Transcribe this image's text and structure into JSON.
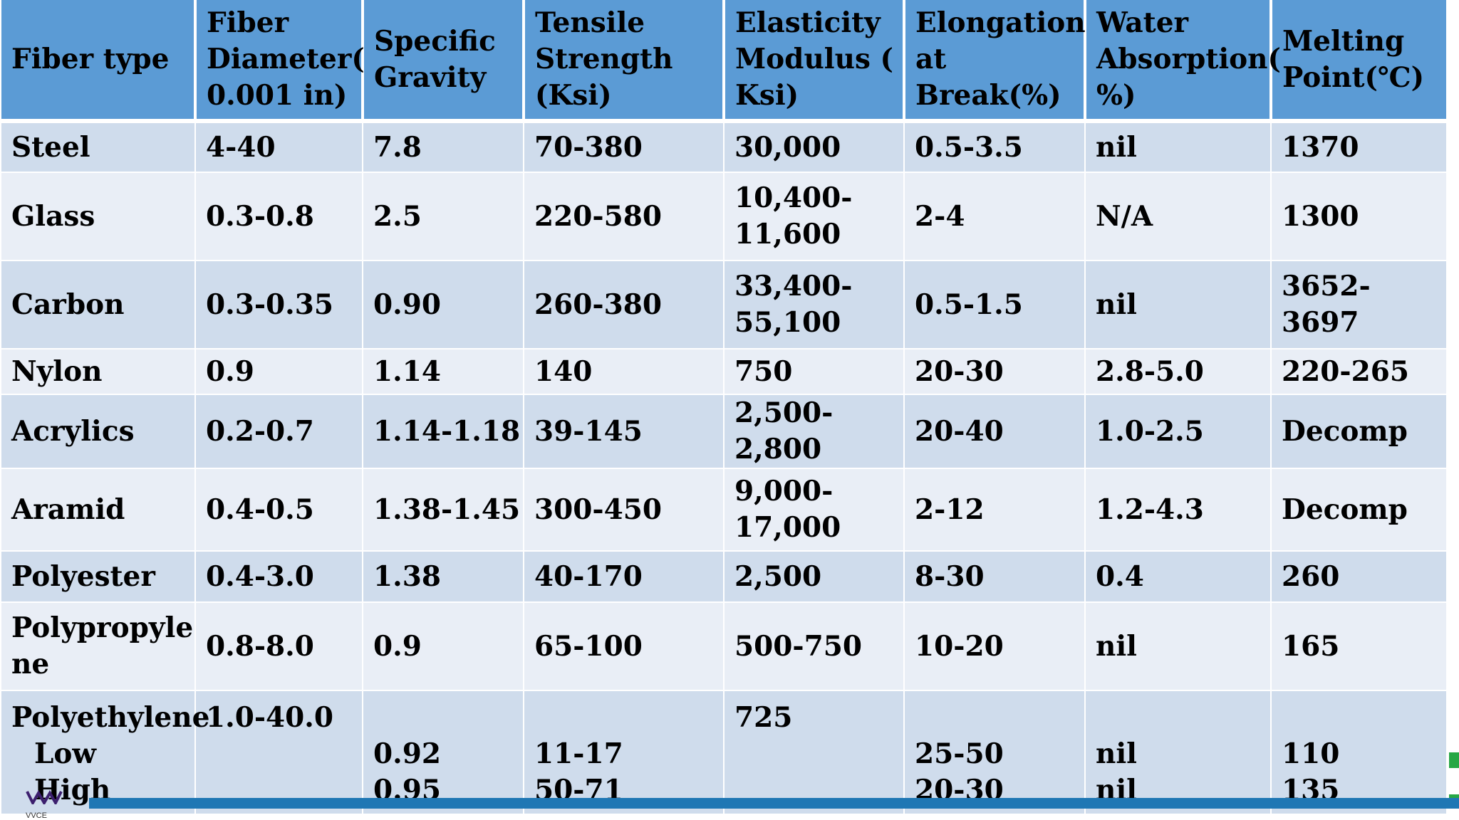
{
  "table": {
    "headers": [
      "Fiber type",
      "Fiber Diameter( 0.001 in)",
      "Specific Gravity",
      "Tensile Strength (Ksi)",
      "Elasticity Modulus ( Ksi)",
      "Elongation at Break(%)",
      "Water Absorption( %)",
      "Melting Point(℃)"
    ],
    "header_lines": [
      [
        "Fiber type"
      ],
      [
        "Fiber",
        "Diameter(",
        "0.001 in)"
      ],
      [
        "Specific",
        "Gravity"
      ],
      [
        "Tensile",
        "Strength",
        "(Ksi)"
      ],
      [
        "Elasticity",
        "Modulus  (",
        "Ksi)"
      ],
      [
        "Elongation",
        "at",
        "Break(%)"
      ],
      [
        "Water",
        "Absorption(",
        "%)"
      ],
      [
        "Melting",
        "Point(℃)"
      ]
    ],
    "rows": [
      [
        "Steel",
        "4-40",
        "7.8",
        "70-380",
        "30,000",
        "0.5-3.5",
        "nil",
        "1370"
      ],
      [
        "Glass",
        "0.3-0.8",
        "2.5",
        "220-580",
        "10,400-\n11,600",
        "2-4",
        "N/A",
        "1300"
      ],
      [
        "Carbon",
        "0.3-0.35",
        "0.90",
        "260-380",
        "33,400-\n55,100",
        "0.5-1.5",
        "nil",
        "3652-3697"
      ],
      [
        "Nylon",
        "0.9",
        "1.14",
        "140",
        "750",
        "20-30",
        "2.8-5.0",
        "220-265"
      ],
      [
        "Acrylics",
        "0.2-0.7",
        "1.14-1.18",
        "39-145",
        "2,500-2,800",
        "20-40",
        "1.0-2.5",
        "Decomp"
      ],
      [
        "Aramid",
        "0.4-0.5",
        "1.38-1.45",
        "300-450",
        "9,000-\n17,000",
        "2-12",
        "1.2-4.3",
        "Decomp"
      ],
      [
        "Polyester",
        "0.4-3.0",
        "1.38",
        "40-170",
        "2,500",
        "8-30",
        "0.4",
        "260"
      ],
      [
        "Polypropyle\nne",
        "0.8-8.0",
        "0.9",
        "65-100",
        "500-750",
        "10-20",
        "nil",
        "165"
      ]
    ],
    "polyethylene": {
      "type": "Polyethylene",
      "low_label": "Low",
      "high_label": "High",
      "diameter": "1.0-40.0",
      "gravity_low": "0.92",
      "gravity_high": "0.95",
      "tensile_low": "11-17",
      "tensile_high": "50-71",
      "modulus": "725",
      "elongation_low": "25-50",
      "elongation_high": "20-30",
      "water_low": "nil",
      "water_high": "nil",
      "melting_low": "110",
      "melting_high": "135"
    }
  },
  "footer": {
    "logo_text": "VVCE"
  },
  "colors": {
    "header_bg": "#5b9bd5",
    "row_odd": "#cfdcec",
    "row_even": "#e9eef6",
    "footer_bar": "#1f77b4",
    "edge_accent": "#28a745"
  }
}
